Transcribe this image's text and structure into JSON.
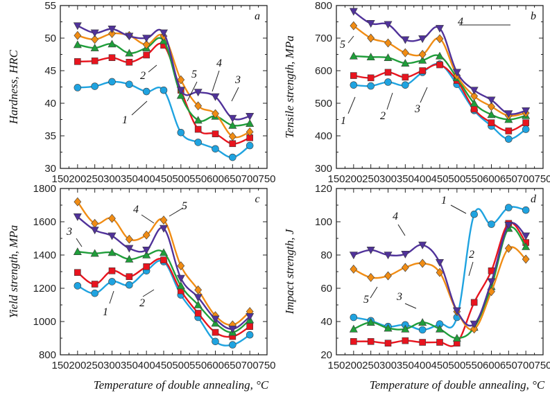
{
  "colors": {
    "1": "#1fa3e0",
    "2": "#e8141e",
    "3": "#1f9e3a",
    "4": "#50329a",
    "5": "#f08c14"
  },
  "markers": {
    "1": "circle",
    "2": "square",
    "3": "triangle-up",
    "4": "triangle-down",
    "5": "diamond"
  },
  "chart_data": [
    {
      "type": "line",
      "panel_letter": "a",
      "ylabel": "Hardness, HRC",
      "xlabel": "",
      "xlim": [
        150,
        750
      ],
      "ylim": [
        30,
        55
      ],
      "xticks": [
        150,
        200,
        250,
        300,
        350,
        400,
        450,
        500,
        550,
        600,
        650,
        700,
        750
      ],
      "yticks": [
        30,
        35,
        40,
        45,
        50,
        55
      ],
      "x": [
        200,
        250,
        300,
        350,
        400,
        450,
        500,
        550,
        600,
        650,
        700
      ],
      "series": [
        {
          "name": "1",
          "values": [
            42.4,
            42.6,
            43.3,
            42.9,
            41.8,
            42.0,
            35.5,
            34.0,
            33.0,
            31.7,
            33.5
          ]
        },
        {
          "name": "2",
          "values": [
            46.4,
            46.5,
            47.0,
            46.3,
            47.4,
            48.9,
            42.0,
            36.0,
            35.3,
            33.8,
            34.7
          ]
        },
        {
          "name": "3",
          "values": [
            49.0,
            48.5,
            49.1,
            47.7,
            48.5,
            49.6,
            41.2,
            37.4,
            38.0,
            36.6,
            36.9
          ]
        },
        {
          "name": "4",
          "values": [
            51.9,
            50.8,
            51.4,
            50.3,
            50.0,
            50.8,
            42.0,
            41.7,
            41.0,
            37.7,
            38.0
          ]
        },
        {
          "name": "5",
          "values": [
            50.4,
            49.8,
            50.7,
            50.4,
            49.0,
            50.3,
            43.6,
            39.6,
            38.4,
            34.9,
            35.6
          ]
        }
      ],
      "annotations": [
        "1",
        "2",
        "3",
        "4",
        "5"
      ]
    },
    {
      "type": "line",
      "panel_letter": "b",
      "ylabel": "Tensile strength, MPa",
      "xlabel": "",
      "xlim": [
        150,
        750
      ],
      "ylim": [
        300,
        800
      ],
      "xticks": [
        150,
        200,
        250,
        300,
        350,
        400,
        450,
        500,
        550,
        600,
        650,
        700,
        750
      ],
      "yticks": [
        300,
        400,
        500,
        600,
        700,
        800
      ],
      "x": [
        200,
        250,
        300,
        350,
        400,
        450,
        500,
        550,
        600,
        650,
        700
      ],
      "series": [
        {
          "name": "1",
          "values": [
            556,
            553,
            565,
            556,
            595,
            620,
            558,
            478,
            430,
            390,
            420
          ]
        },
        {
          "name": "2",
          "values": [
            585,
            578,
            595,
            580,
            600,
            618,
            570,
            482,
            440,
            415,
            440
          ]
        },
        {
          "name": "3",
          "values": [
            645,
            642,
            640,
            623,
            632,
            645,
            578,
            500,
            465,
            450,
            462
          ]
        },
        {
          "name": "4",
          "values": [
            782,
            745,
            742,
            695,
            698,
            730,
            595,
            540,
            510,
            468,
            477
          ]
        },
        {
          "name": "5",
          "values": [
            738,
            700,
            685,
            655,
            650,
            698,
            585,
            522,
            490,
            462,
            470
          ]
        }
      ],
      "annotations": [
        "1",
        "2",
        "3",
        "4",
        "5"
      ]
    },
    {
      "type": "line",
      "panel_letter": "c",
      "ylabel": "Yield strength, MPa",
      "xlabel": "Temperature of double annealing, °C",
      "xlim": [
        150,
        750
      ],
      "ylim": [
        800,
        1800
      ],
      "xticks": [
        150,
        200,
        250,
        300,
        350,
        400,
        450,
        500,
        550,
        600,
        650,
        700,
        750
      ],
      "yticks": [
        800,
        1000,
        1200,
        1400,
        1600,
        1800
      ],
      "x": [
        200,
        250,
        300,
        350,
        400,
        450,
        500,
        550,
        600,
        650,
        700
      ],
      "series": [
        {
          "name": "1",
          "values": [
            1215,
            1170,
            1240,
            1220,
            1305,
            1360,
            1160,
            1025,
            880,
            860,
            920
          ]
        },
        {
          "name": "2",
          "values": [
            1295,
            1225,
            1305,
            1270,
            1330,
            1370,
            1185,
            1050,
            935,
            910,
            970
          ]
        },
        {
          "name": "3",
          "values": [
            1420,
            1410,
            1415,
            1375,
            1400,
            1415,
            1215,
            1100,
            990,
            935,
            1010
          ]
        },
        {
          "name": "4",
          "values": [
            1630,
            1550,
            1515,
            1440,
            1430,
            1560,
            1260,
            1145,
            1015,
            955,
            1030
          ]
        },
        {
          "name": "5",
          "values": [
            1720,
            1590,
            1620,
            1495,
            1520,
            1610,
            1335,
            1190,
            1035,
            980,
            1060
          ]
        }
      ],
      "annotations": [
        "1",
        "2",
        "3",
        "4",
        "5"
      ]
    },
    {
      "type": "line",
      "panel_letter": "d",
      "ylabel": "Impact strength, J",
      "xlabel": "Temperature of double annealing, °C",
      "xlim": [
        150,
        750
      ],
      "ylim": [
        20,
        120
      ],
      "xticks": [
        150,
        200,
        250,
        300,
        350,
        400,
        450,
        500,
        550,
        600,
        650,
        700,
        750
      ],
      "yticks": [
        20,
        40,
        60,
        80,
        100,
        120
      ],
      "x": [
        200,
        250,
        300,
        350,
        400,
        450,
        500,
        550,
        600,
        650,
        700
      ],
      "series": [
        {
          "name": "1",
          "values": [
            42.5,
            40.5,
            37.0,
            38.0,
            35.0,
            38.5,
            42.5,
            104.5,
            98.5,
            108.5,
            107.0
          ]
        },
        {
          "name": "2",
          "values": [
            28.0,
            28.0,
            27.0,
            28.5,
            27.5,
            27.5,
            27.0,
            51.5,
            70.5,
            99.0,
            87.5
          ]
        },
        {
          "name": "3",
          "values": [
            35.5,
            39.5,
            36.0,
            35.5,
            39.5,
            35.5,
            30.0,
            36.5,
            61.0,
            96.0,
            85.0
          ]
        },
        {
          "name": "4",
          "values": [
            80.0,
            83.0,
            80.0,
            80.5,
            86.0,
            75.5,
            46.5,
            38.5,
            64.0,
            98.0,
            91.5
          ]
        },
        {
          "name": "5",
          "values": [
            71.5,
            66.5,
            67.5,
            72.5,
            75.0,
            69.5,
            46.0,
            35.5,
            58.0,
            84.0,
            77.5
          ]
        }
      ],
      "annotations": [
        "1",
        "2",
        "3",
        "4",
        "5"
      ]
    }
  ]
}
